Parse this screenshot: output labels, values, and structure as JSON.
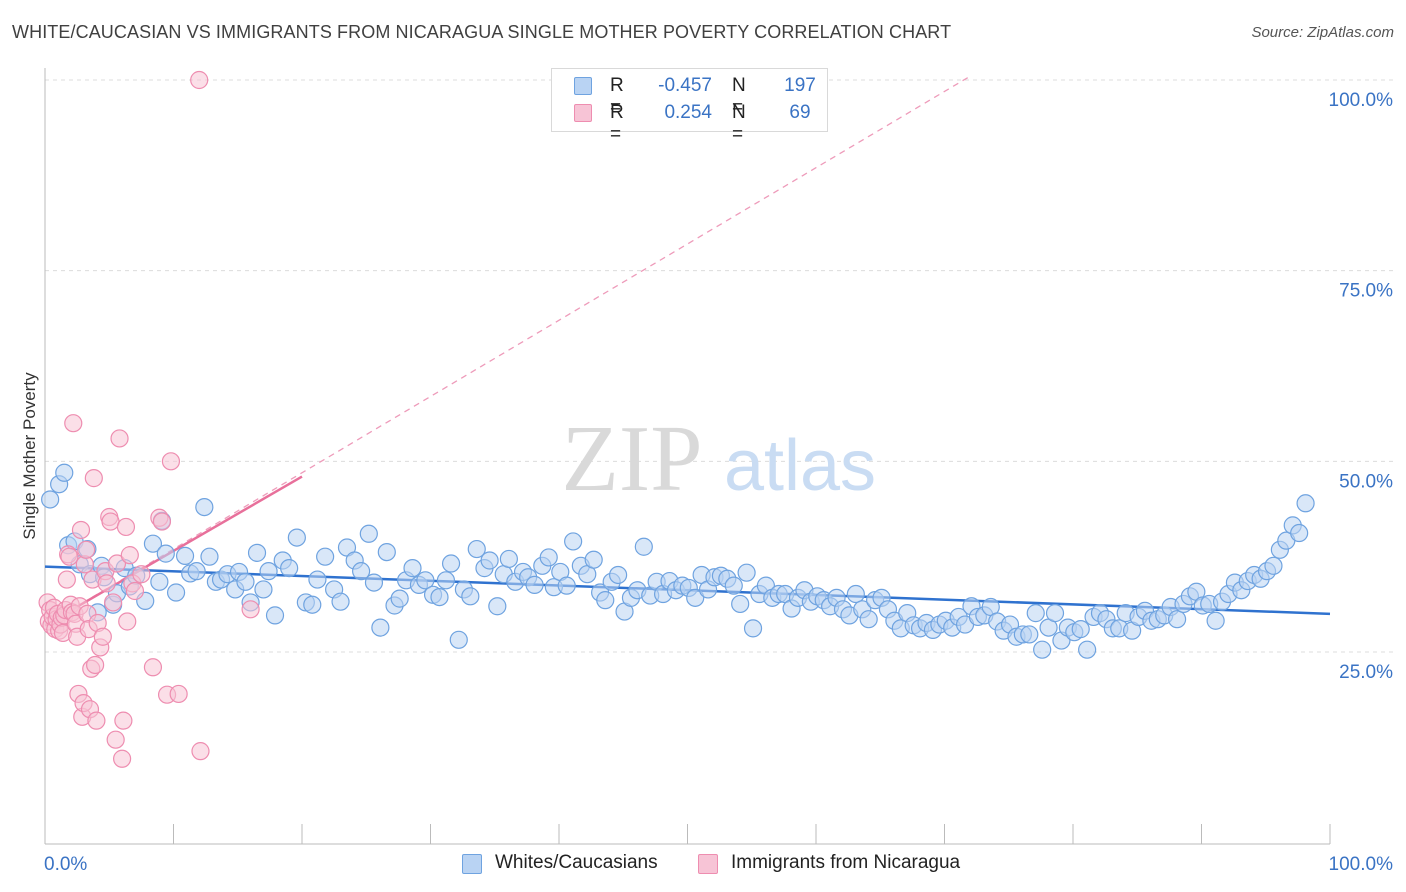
{
  "header": {
    "title": "WHITE/CAUCASIAN VS IMMIGRANTS FROM NICARAGUA SINGLE MOTHER POVERTY CORRELATION CHART",
    "source": "Source: ZipAtlas.com"
  },
  "watermark": {
    "zip": "ZIP",
    "atlas": "atlas"
  },
  "legend": {
    "rows": [
      {
        "r_label": "R =",
        "r_value": "-0.457",
        "n_label": "N =",
        "n_value": "197",
        "color": "#6fa3e0",
        "fill": "#b9d3f3"
      },
      {
        "r_label": "R =",
        "r_value": "0.254",
        "n_label": "N =",
        "n_value": "69",
        "color": "#ee8db0",
        "fill": "#f7c4d6"
      }
    ]
  },
  "bottom_legend": [
    {
      "label": "Whites/Caucasians",
      "color": "#6fa3e0",
      "fill": "#b9d3f3"
    },
    {
      "label": "Immigrants from Nicaragua",
      "color": "#ee8db0",
      "fill": "#f7c4d6"
    }
  ],
  "chart_data": {
    "type": "scatter",
    "title": "WHITE/CAUCASIAN VS IMMIGRANTS FROM NICARAGUA SINGLE MOTHER POVERTY CORRELATION CHART",
    "xlabel": "",
    "ylabel": "Single Mother Poverty",
    "xlim": [
      0,
      100
    ],
    "ylim": [
      0,
      105
    ],
    "x_tick_labels": [
      "0.0%",
      "100.0%"
    ],
    "y_ticks": [
      25,
      50,
      75,
      100
    ],
    "y_tick_labels": [
      "25.0%",
      "50.0%",
      "75.0%",
      "100.0%"
    ],
    "grid": "horizontal dashed",
    "legend_position": "top-center",
    "series": [
      {
        "name": "Whites/Caucasians",
        "color": "#6fa3e0",
        "fill": "#b9d3f3",
        "trend": {
          "x": [
            0,
            100
          ],
          "y": [
            36.2,
            30.0
          ],
          "style": "solid"
        },
        "points": [
          [
            0.4,
            45
          ],
          [
            1.1,
            47
          ],
          [
            1.5,
            48.5
          ],
          [
            1.8,
            39
          ],
          [
            2.3,
            39.5
          ],
          [
            2.7,
            36.5
          ],
          [
            3.3,
            38.5
          ],
          [
            3.5,
            35.2
          ],
          [
            4.1,
            30.2
          ],
          [
            4.4,
            36.3
          ],
          [
            4.6,
            34.8
          ],
          [
            5.3,
            31.2
          ],
          [
            5.6,
            32.7
          ],
          [
            6.2,
            36
          ],
          [
            6.6,
            33.6
          ],
          [
            7.1,
            35
          ],
          [
            7.8,
            31.7
          ],
          [
            8.4,
            39.2
          ],
          [
            8.9,
            34.2
          ],
          [
            9.1,
            42.2
          ],
          [
            9.4,
            37.9
          ],
          [
            10.2,
            32.8
          ],
          [
            10.9,
            37.6
          ],
          [
            11.3,
            35.3
          ],
          [
            11.8,
            35.6
          ],
          [
            12.4,
            44
          ],
          [
            12.8,
            37.5
          ],
          [
            13.3,
            34.2
          ],
          [
            13.7,
            34.5
          ],
          [
            14.2,
            35.2
          ],
          [
            14.8,
            33.2
          ],
          [
            15.1,
            35.5
          ],
          [
            15.6,
            34.2
          ],
          [
            16,
            31.5
          ],
          [
            16.5,
            38
          ],
          [
            17,
            33.2
          ],
          [
            17.4,
            35.6
          ],
          [
            17.9,
            29.8
          ],
          [
            18.5,
            37
          ],
          [
            19,
            36
          ],
          [
            19.6,
            40
          ],
          [
            20.3,
            31.5
          ],
          [
            20.8,
            31.2
          ],
          [
            21.2,
            34.5
          ],
          [
            21.8,
            37.5
          ],
          [
            22.5,
            33.2
          ],
          [
            23,
            31.6
          ],
          [
            23.5,
            38.7
          ],
          [
            24.1,
            37
          ],
          [
            24.6,
            35.6
          ],
          [
            25.2,
            40.5
          ],
          [
            25.6,
            34.1
          ],
          [
            26.1,
            28.2
          ],
          [
            26.6,
            38.1
          ],
          [
            27.2,
            31.1
          ],
          [
            27.6,
            32
          ],
          [
            28.1,
            34.4
          ],
          [
            28.6,
            36
          ],
          [
            29.1,
            33.8
          ],
          [
            29.6,
            34.4
          ],
          [
            30.2,
            32.5
          ],
          [
            30.7,
            32.2
          ],
          [
            31.2,
            34.4
          ],
          [
            31.6,
            36.6
          ],
          [
            32.2,
            26.6
          ],
          [
            32.6,
            33.2
          ],
          [
            33.1,
            32.3
          ],
          [
            33.6,
            38.5
          ],
          [
            34.2,
            36
          ],
          [
            34.6,
            37
          ],
          [
            35.2,
            31
          ],
          [
            35.7,
            35.2
          ],
          [
            36.1,
            37.2
          ],
          [
            36.6,
            34.2
          ],
          [
            37.2,
            35.5
          ],
          [
            37.6,
            34.8
          ],
          [
            38.1,
            33.8
          ],
          [
            38.7,
            36.3
          ],
          [
            39.2,
            37.4
          ],
          [
            39.6,
            33.5
          ],
          [
            40.1,
            35.5
          ],
          [
            40.6,
            33.7
          ],
          [
            41.1,
            39.5
          ],
          [
            41.7,
            36.3
          ],
          [
            42.2,
            35.2
          ],
          [
            42.7,
            37.1
          ],
          [
            43.2,
            32.8
          ],
          [
            43.6,
            31.8
          ],
          [
            44.1,
            34.2
          ],
          [
            44.6,
            35.1
          ],
          [
            45.1,
            30.3
          ],
          [
            45.6,
            32.1
          ],
          [
            46.1,
            33.1
          ],
          [
            46.6,
            38.8
          ],
          [
            47.1,
            32.4
          ],
          [
            47.6,
            34.2
          ],
          [
            48.1,
            32.6
          ],
          [
            48.6,
            34.3
          ],
          [
            49.1,
            33.1
          ],
          [
            49.6,
            33.7
          ],
          [
            50.1,
            33.4
          ],
          [
            50.6,
            32.1
          ],
          [
            51.1,
            35.1
          ],
          [
            51.6,
            33.2
          ],
          [
            52.1,
            34.8
          ],
          [
            52.6,
            35
          ],
          [
            53.1,
            34.6
          ],
          [
            53.6,
            33.7
          ],
          [
            54.1,
            31.3
          ],
          [
            54.6,
            35.4
          ],
          [
            55.1,
            28.1
          ],
          [
            55.6,
            32.6
          ],
          [
            56.1,
            33.7
          ],
          [
            56.6,
            32.1
          ],
          [
            57.1,
            32.6
          ],
          [
            57.6,
            32.6
          ],
          [
            58.1,
            30.7
          ],
          [
            58.6,
            32.1
          ],
          [
            59.1,
            33.1
          ],
          [
            59.6,
            31.6
          ],
          [
            60.1,
            32.3
          ],
          [
            60.6,
            31.8
          ],
          [
            61.1,
            31
          ],
          [
            61.6,
            32.1
          ],
          [
            62.1,
            30.6
          ],
          [
            62.6,
            29.8
          ],
          [
            63.1,
            32.6
          ],
          [
            63.6,
            30.6
          ],
          [
            64.1,
            29.3
          ],
          [
            64.6,
            31.8
          ],
          [
            65.1,
            32.1
          ],
          [
            65.6,
            30.6
          ],
          [
            66.1,
            29.1
          ],
          [
            66.6,
            28.1
          ],
          [
            67.1,
            30.1
          ],
          [
            67.6,
            28.5
          ],
          [
            68.1,
            28.1
          ],
          [
            68.6,
            28.8
          ],
          [
            69.1,
            27.9
          ],
          [
            69.6,
            28.6
          ],
          [
            70.1,
            29.1
          ],
          [
            70.6,
            28.2
          ],
          [
            71.1,
            29.6
          ],
          [
            71.6,
            28.6
          ],
          [
            72.1,
            31
          ],
          [
            72.6,
            29.6
          ],
          [
            73.1,
            29.8
          ],
          [
            73.6,
            30.9
          ],
          [
            74.1,
            29
          ],
          [
            74.6,
            27.8
          ],
          [
            75.1,
            28.6
          ],
          [
            75.6,
            27
          ],
          [
            76.1,
            27.3
          ],
          [
            76.6,
            27.3
          ],
          [
            77.1,
            30.1
          ],
          [
            77.6,
            25.3
          ],
          [
            78.1,
            28.2
          ],
          [
            78.6,
            30.1
          ],
          [
            79.1,
            26.5
          ],
          [
            79.6,
            28.2
          ],
          [
            80.1,
            27.6
          ],
          [
            80.6,
            28
          ],
          [
            81.1,
            25.3
          ],
          [
            81.6,
            29.6
          ],
          [
            82.1,
            30.1
          ],
          [
            82.6,
            29.3
          ],
          [
            83.1,
            28.1
          ],
          [
            83.6,
            28.1
          ],
          [
            84.1,
            30.1
          ],
          [
            84.6,
            27.8
          ],
          [
            85.1,
            29.6
          ],
          [
            85.6,
            30.4
          ],
          [
            86.1,
            29.1
          ],
          [
            86.6,
            29.3
          ],
          [
            87.1,
            29.8
          ],
          [
            87.6,
            30.9
          ],
          [
            88.1,
            29.3
          ],
          [
            88.6,
            31.3
          ],
          [
            89.1,
            32.3
          ],
          [
            89.6,
            32.9
          ],
          [
            90.1,
            31.1
          ],
          [
            90.6,
            31.3
          ],
          [
            91.1,
            29.1
          ],
          [
            91.6,
            31.6
          ],
          [
            92.1,
            32.6
          ],
          [
            92.6,
            34.1
          ],
          [
            93.1,
            33.1
          ],
          [
            93.6,
            34.3
          ],
          [
            94.1,
            35.1
          ],
          [
            94.6,
            34.6
          ],
          [
            95.1,
            35.6
          ],
          [
            95.6,
            36.3
          ],
          [
            96.1,
            38.4
          ],
          [
            96.6,
            39.6
          ],
          [
            97.1,
            41.6
          ],
          [
            97.6,
            40.6
          ],
          [
            98.1,
            44.5
          ]
        ]
      },
      {
        "name": "Immigrants from Nicaragua",
        "color": "#ee8db0",
        "fill": "#f7c4d6",
        "trend": {
          "x": [
            0,
            20
          ],
          "y": [
            28.5,
            48.0
          ],
          "extended": {
            "x": [
              0,
              72
            ],
            "y": [
              28.5,
              100.5
            ]
          },
          "style": "solid then dashed"
        },
        "points": [
          [
            0.2,
            31.5
          ],
          [
            0.3,
            29
          ],
          [
            0.4,
            30.5
          ],
          [
            0.5,
            28.5
          ],
          [
            0.6,
            29.6
          ],
          [
            0.7,
            30.8
          ],
          [
            0.8,
            28
          ],
          [
            0.9,
            29.3
          ],
          [
            1.0,
            30
          ],
          [
            1.1,
            27.8
          ],
          [
            1.2,
            28.6
          ],
          [
            1.3,
            29.5
          ],
          [
            1.4,
            27.5
          ],
          [
            1.5,
            29.8
          ],
          [
            1.6,
            30.5
          ],
          [
            1.7,
            34.5
          ],
          [
            1.8,
            37.8
          ],
          [
            1.9,
            37.5
          ],
          [
            2.0,
            31.2
          ],
          [
            2.1,
            30.2
          ],
          [
            2.2,
            55
          ],
          [
            2.3,
            30
          ],
          [
            2.4,
            28.7
          ],
          [
            2.5,
            27
          ],
          [
            2.6,
            19.5
          ],
          [
            2.7,
            31
          ],
          [
            2.8,
            41
          ],
          [
            2.9,
            16.5
          ],
          [
            3.0,
            18.3
          ],
          [
            3.1,
            36.5
          ],
          [
            3.2,
            38.4
          ],
          [
            3.3,
            30
          ],
          [
            3.4,
            28
          ],
          [
            3.5,
            17.5
          ],
          [
            3.6,
            22.8
          ],
          [
            3.7,
            34.5
          ],
          [
            3.8,
            47.8
          ],
          [
            3.9,
            23.3
          ],
          [
            4.0,
            16
          ],
          [
            4.1,
            28.8
          ],
          [
            4.3,
            25.6
          ],
          [
            4.5,
            27
          ],
          [
            4.7,
            35.6
          ],
          [
            4.8,
            34
          ],
          [
            5.0,
            42.7
          ],
          [
            5.1,
            42.1
          ],
          [
            5.3,
            31.5
          ],
          [
            5.5,
            13.5
          ],
          [
            5.6,
            36.6
          ],
          [
            5.8,
            53
          ],
          [
            6.0,
            11
          ],
          [
            6.1,
            16
          ],
          [
            6.3,
            41.4
          ],
          [
            6.4,
            29
          ],
          [
            6.6,
            37.7
          ],
          [
            6.8,
            34
          ],
          [
            7.0,
            33
          ],
          [
            7.5,
            35.2
          ],
          [
            8.4,
            23
          ],
          [
            8.9,
            42.6
          ],
          [
            9.1,
            42.1
          ],
          [
            9.5,
            19.4
          ],
          [
            9.8,
            50
          ],
          [
            10.4,
            19.5
          ],
          [
            12.1,
            12
          ],
          [
            16,
            30.6
          ],
          [
            12.0,
            100
          ]
        ]
      }
    ]
  }
}
